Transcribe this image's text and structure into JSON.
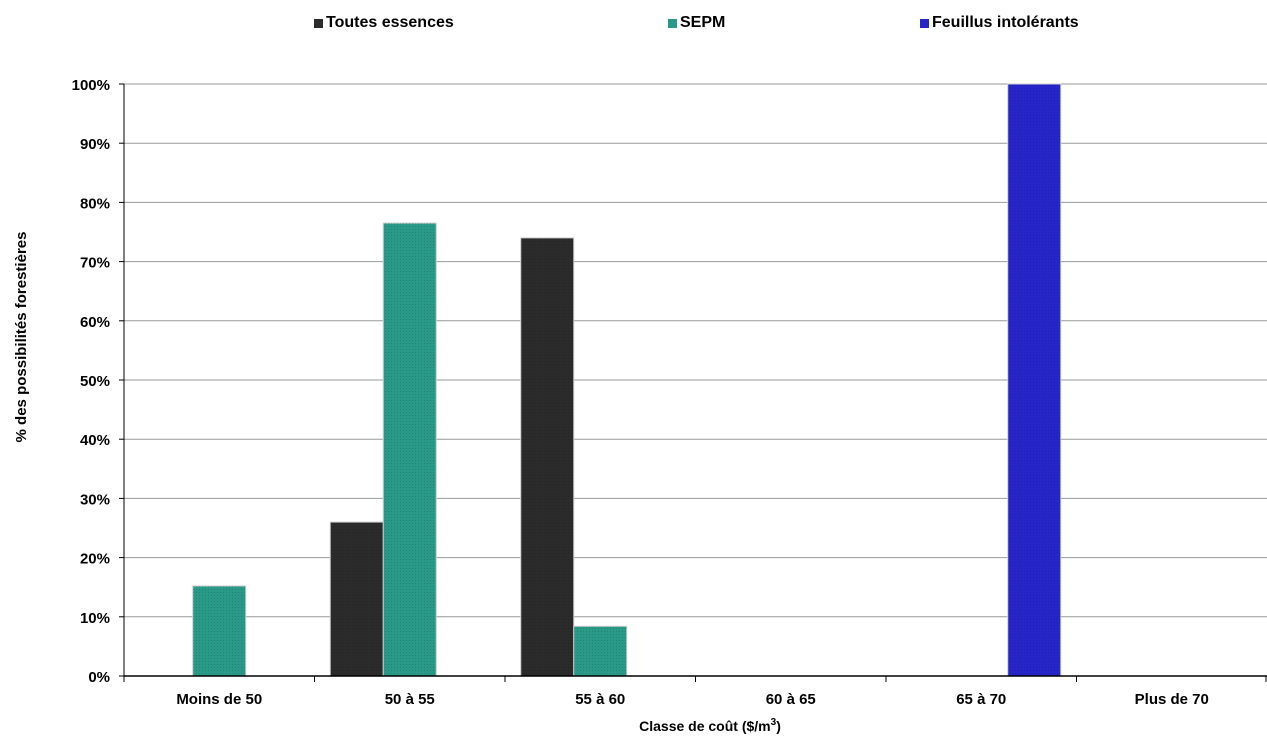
{
  "chart_data": {
    "type": "bar",
    "title": "",
    "xlabel": "Classe de coût ($/m",
    "xlabel_sup": "3",
    "xlabel_end": ")",
    "ylabel": "% des possibilités forestières",
    "ylim": [
      0,
      100
    ],
    "yticks": [
      "0%",
      "10%",
      "20%",
      "30%",
      "40%",
      "50%",
      "60%",
      "70%",
      "80%",
      "90%",
      "100%"
    ],
    "grid": true,
    "legend_position": "top",
    "categories": [
      "Moins de 50",
      "50 à 55",
      "55 à 60",
      "60 à 65",
      "65 à 70",
      "Plus de 70"
    ],
    "series": [
      {
        "name": "Toutes essences",
        "color": "#2b2b2b",
        "values": [
          0,
          26,
          74,
          0,
          0,
          0
        ]
      },
      {
        "name": "SEPM",
        "color": "#2a9a88",
        "values": [
          15.2,
          76.5,
          8.4,
          0,
          0,
          0
        ]
      },
      {
        "name": "Feuillus intolérants",
        "color": "#2525c8",
        "values": [
          0,
          0,
          0,
          0,
          100,
          0
        ]
      }
    ]
  }
}
